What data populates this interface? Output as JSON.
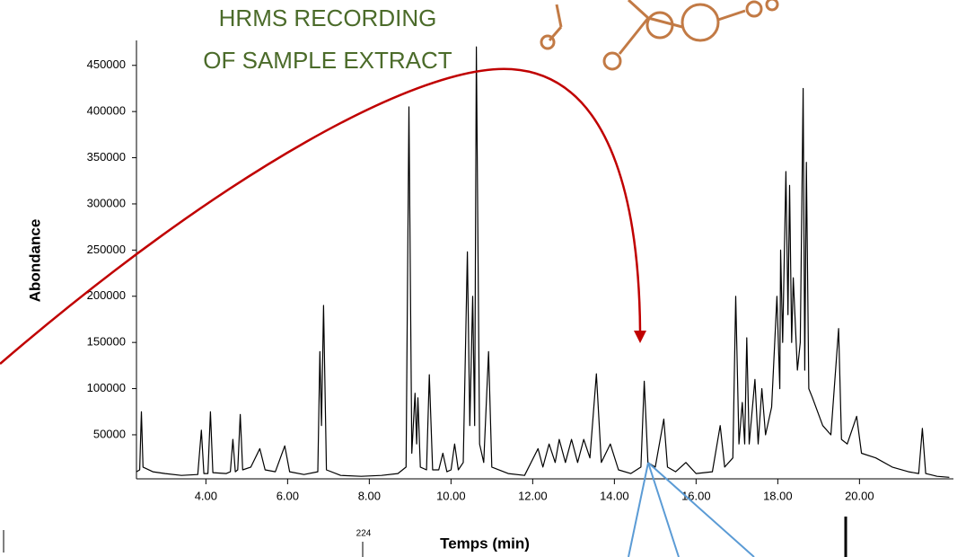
{
  "chart_data": {
    "type": "line",
    "annotation": [
      "HRMS RECORDING",
      "OF SAMPLE EXTRACT"
    ],
    "ylabel": "Abondance",
    "xlabel": "Temps (min)",
    "peak_label": "224",
    "color": "#000000",
    "xlim": [
      2.3,
      22.3
    ],
    "ylim": [
      2300,
      477000
    ],
    "xticks": [
      {
        "value": 4,
        "label": "4.00"
      },
      {
        "value": 6,
        "label": "6.00"
      },
      {
        "value": 8,
        "label": "8.00"
      },
      {
        "value": 10,
        "label": "10.00"
      },
      {
        "value": 12,
        "label": "12.00"
      },
      {
        "value": 14,
        "label": "14.00"
      },
      {
        "value": 16,
        "label": "16.00"
      },
      {
        "value": 18,
        "label": "18.00"
      },
      {
        "value": 20,
        "label": "20.00"
      }
    ],
    "yticks": [
      50000,
      100000,
      150000,
      200000,
      250000,
      300000,
      350000,
      400000,
      450000
    ],
    "x": [
      2.3,
      2.38,
      2.42,
      2.46,
      2.7,
      3.0,
      3.4,
      3.8,
      3.89,
      3.95,
      4.05,
      4.11,
      4.17,
      4.5,
      4.6,
      4.66,
      4.72,
      4.78,
      4.84,
      4.9,
      5.1,
      5.32,
      5.45,
      5.7,
      5.93,
      6.05,
      6.4,
      6.74,
      6.79,
      6.83,
      6.88,
      6.95,
      7.3,
      7.8,
      8.3,
      8.7,
      8.9,
      8.97,
      9.04,
      9.12,
      9.16,
      9.19,
      9.25,
      9.4,
      9.47,
      9.55,
      9.7,
      9.8,
      9.9,
      10.0,
      10.09,
      10.18,
      10.3,
      10.4,
      10.46,
      10.53,
      10.58,
      10.62,
      10.7,
      10.8,
      10.92,
      11.0,
      11.4,
      11.8,
      12.13,
      12.25,
      12.4,
      12.55,
      12.65,
      12.8,
      12.95,
      13.1,
      13.25,
      13.4,
      13.56,
      13.68,
      13.9,
      14.1,
      14.4,
      14.65,
      14.73,
      14.82,
      15.0,
      15.21,
      15.3,
      15.5,
      15.75,
      16.0,
      16.4,
      16.59,
      16.7,
      16.9,
      16.97,
      17.05,
      17.13,
      17.19,
      17.24,
      17.3,
      17.44,
      17.52,
      17.61,
      17.7,
      17.85,
      17.98,
      18.05,
      18.07,
      18.12,
      18.2,
      18.25,
      18.29,
      18.34,
      18.38,
      18.48,
      18.55,
      18.62,
      18.66,
      18.7,
      18.76,
      18.85,
      19.1,
      19.3,
      19.49,
      19.56,
      19.7,
      19.93,
      20.05,
      20.4,
      20.8,
      21.2,
      21.45,
      21.54,
      21.62,
      21.9,
      22.2
    ],
    "values": [
      10000,
      12000,
      75000,
      15000,
      10000,
      8000,
      6000,
      7000,
      55000,
      8000,
      8000,
      75000,
      9000,
      8000,
      10000,
      45000,
      10000,
      12000,
      72000,
      12000,
      15000,
      35000,
      12000,
      10000,
      38000,
      10000,
      7000,
      10000,
      140000,
      60000,
      190000,
      12000,
      6000,
      5000,
      6000,
      8000,
      15000,
      405000,
      30000,
      95000,
      40000,
      90000,
      15000,
      12000,
      115000,
      12000,
      12000,
      30000,
      10000,
      12000,
      40000,
      12000,
      20000,
      248000,
      60000,
      200000,
      60000,
      470000,
      40000,
      20000,
      140000,
      15000,
      8000,
      6000,
      35000,
      15000,
      40000,
      20000,
      45000,
      20000,
      45000,
      20000,
      45000,
      25000,
      116000,
      20000,
      40000,
      12000,
      8000,
      15000,
      108000,
      20000,
      15000,
      67000,
      15000,
      10000,
      20000,
      8000,
      10000,
      60000,
      15000,
      25000,
      200000,
      40000,
      85000,
      40000,
      155000,
      40000,
      110000,
      40000,
      100000,
      50000,
      80000,
      200000,
      100000,
      250000,
      150000,
      335000,
      180000,
      320000,
      150000,
      220000,
      120000,
      150000,
      425000,
      120000,
      345000,
      100000,
      90000,
      60000,
      50000,
      165000,
      45000,
      40000,
      70000,
      30000,
      25000,
      15000,
      10000,
      8000,
      57000,
      8000,
      5000,
      4000
    ]
  }
}
